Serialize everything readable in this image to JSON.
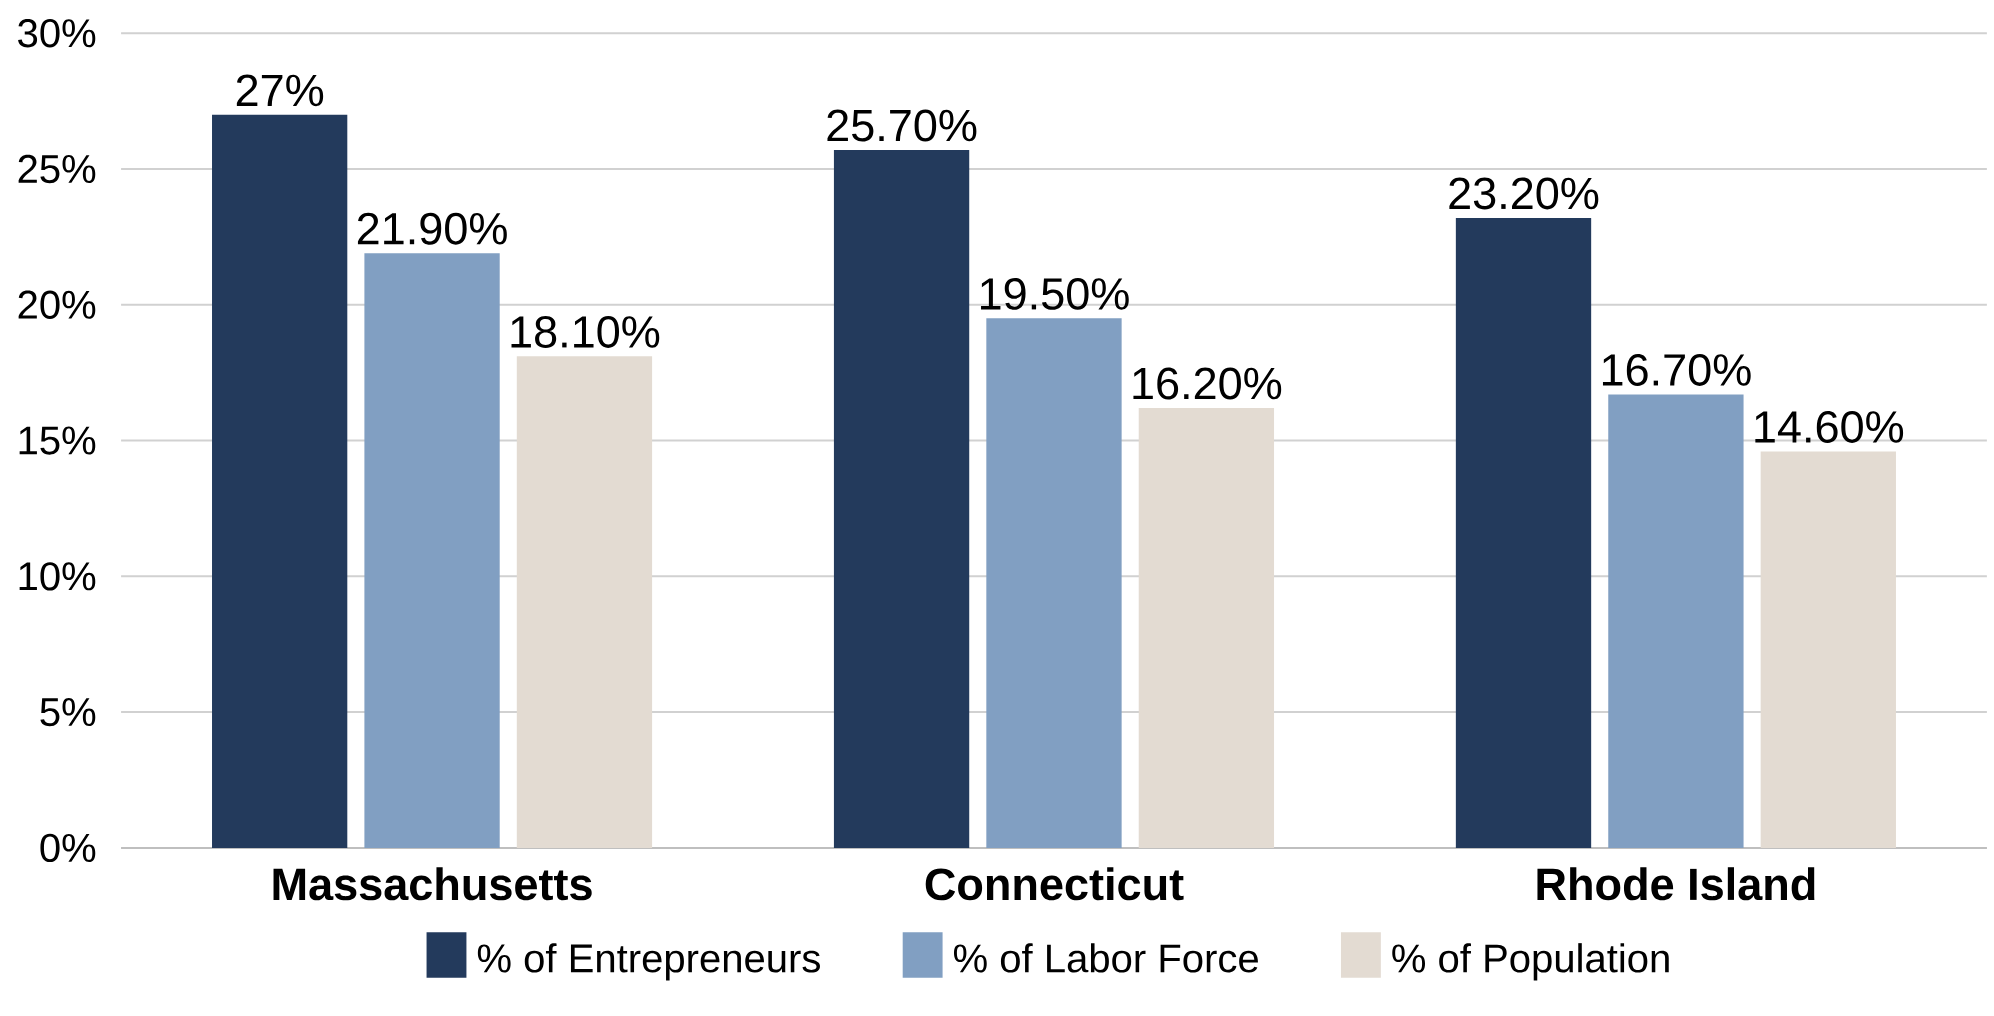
{
  "chart_data": {
    "type": "bar",
    "categories": [
      "Massachusetts",
      "Connecticut",
      "Rhode Island"
    ],
    "series": [
      {
        "name": "% of Entrepreneurs",
        "color": "#233a5c",
        "values": [
          27,
          25.7,
          23.2
        ],
        "value_labels": [
          "27%",
          "25.70%",
          "23.20%"
        ]
      },
      {
        "name": "% of Labor Force",
        "color": "#819fc2",
        "values": [
          21.9,
          19.5,
          16.7
        ],
        "value_labels": [
          "21.90%",
          "19.50%",
          "16.70%"
        ]
      },
      {
        "name": "% of Population",
        "color": "#e3dbd2",
        "values": [
          18.1,
          16.2,
          14.6
        ],
        "value_labels": [
          "18.10%",
          "16.20%",
          "14.60%"
        ]
      }
    ],
    "ylim": [
      0,
      30
    ],
    "yticks": [
      {
        "value": 0,
        "label": "0%"
      },
      {
        "value": 5,
        "label": "5%"
      },
      {
        "value": 10,
        "label": "10%"
      },
      {
        "value": 15,
        "label": "15%"
      },
      {
        "value": 20,
        "label": "20%"
      },
      {
        "value": 25,
        "label": "25%"
      },
      {
        "value": 30,
        "label": "30%"
      }
    ],
    "grid": "y",
    "legend": "bottom"
  }
}
